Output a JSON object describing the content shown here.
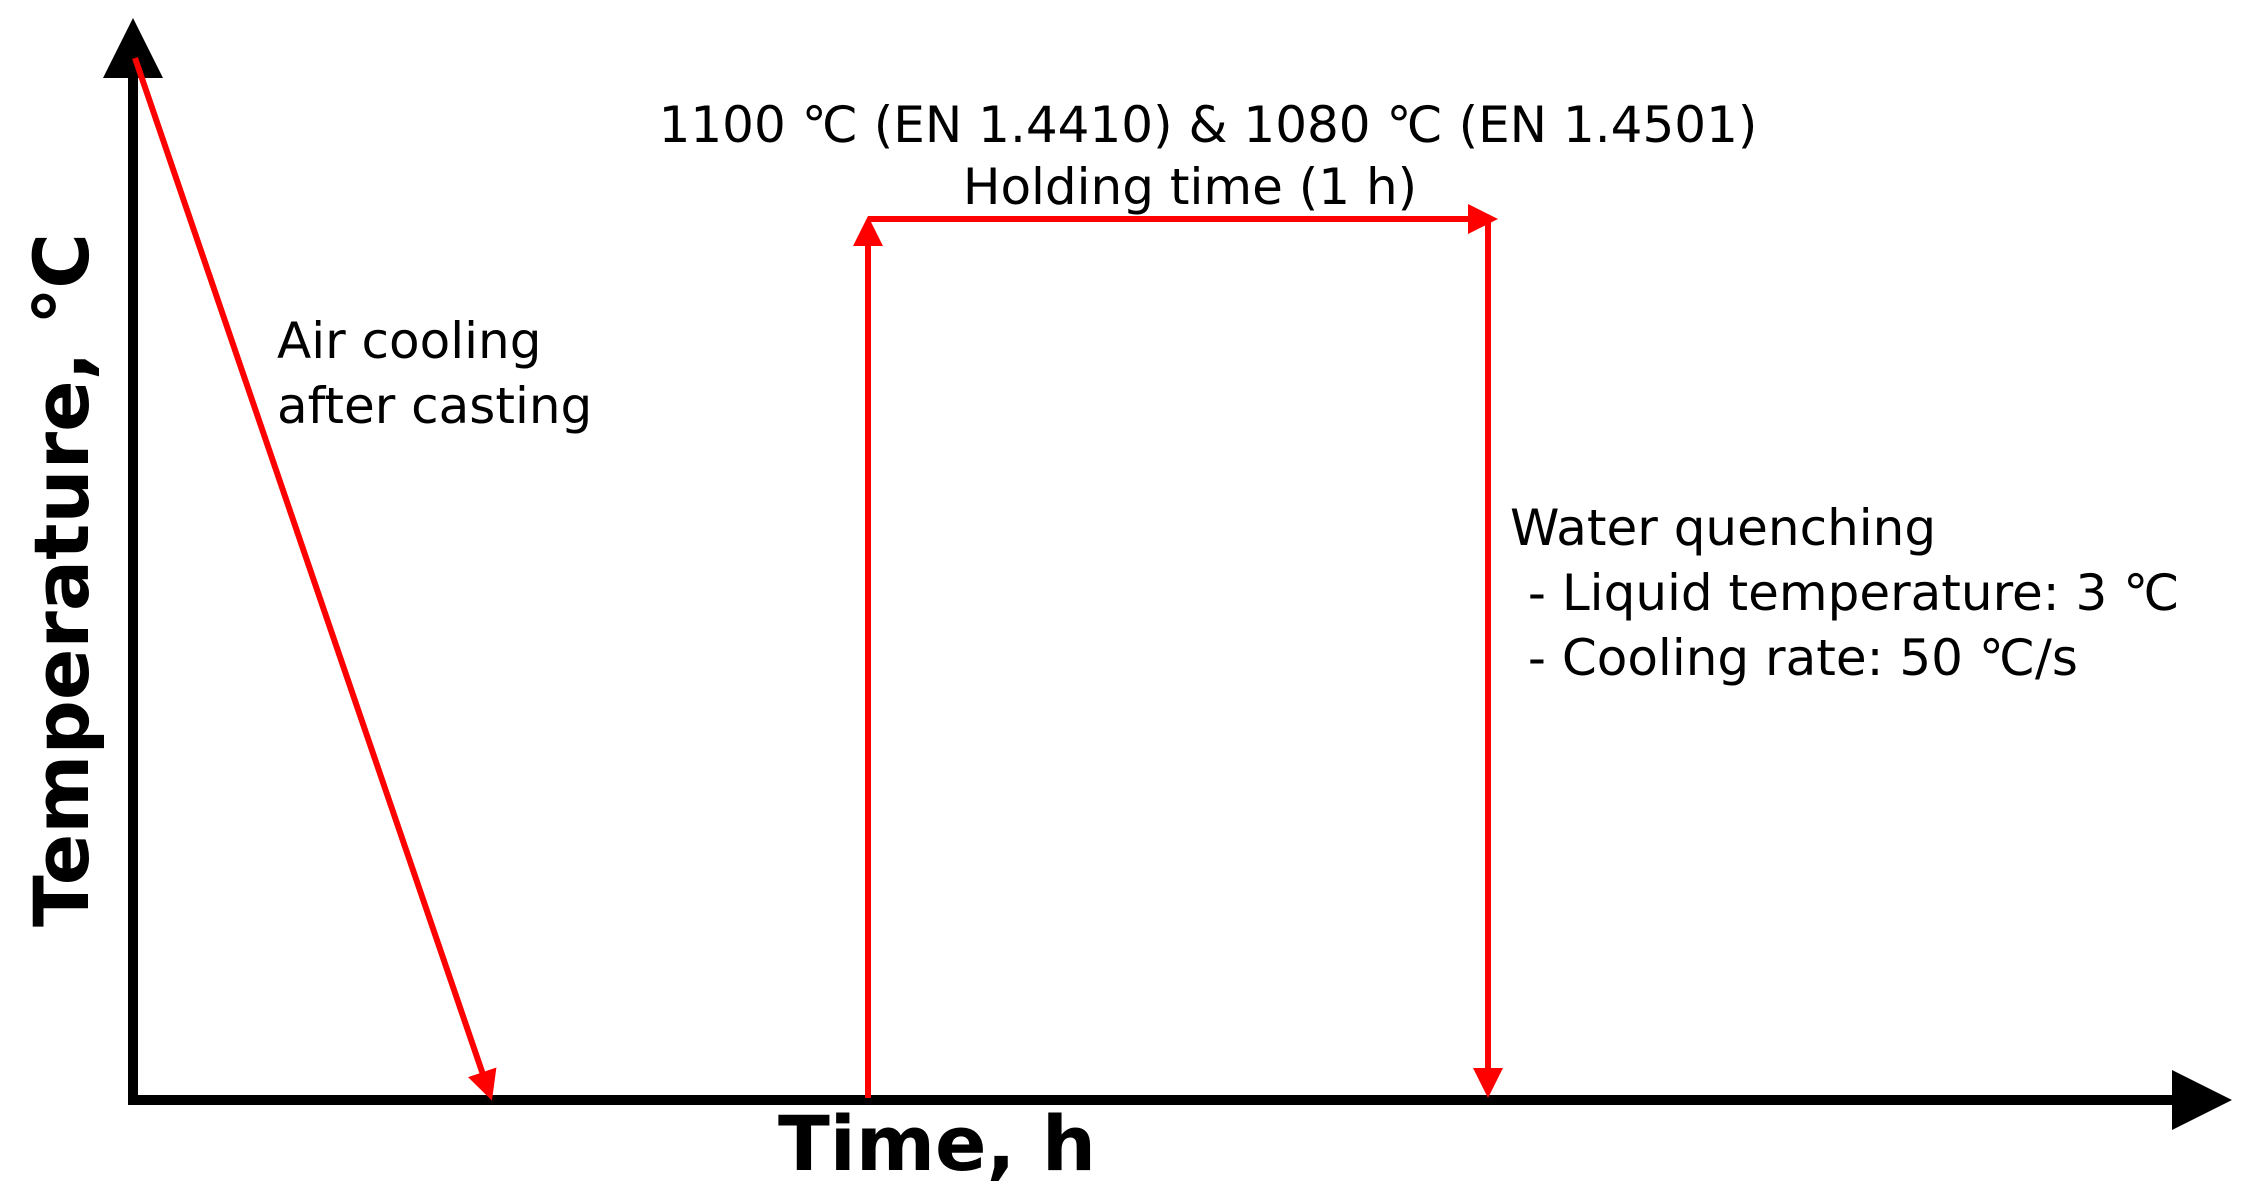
{
  "axes": {
    "x_label": "Time, h",
    "y_label": "Temperature, ℃"
  },
  "annotations": {
    "air_cooling_line1": "Air cooling",
    "air_cooling_line2": "after casting",
    "solution_temp": "1100 ℃ (EN 1.4410)  & 1080 ℃ (EN 1.4501)",
    "holding_time": "Holding time (1 h)",
    "quench_title": "Water quenching",
    "quench_item1": " - Liquid temperature: 3 ℃",
    "quench_item2": " - Cooling rate: 50 ℃/s"
  },
  "colors": {
    "axis": "#000000",
    "process_line": "#ff0000",
    "text": "#000000"
  }
}
